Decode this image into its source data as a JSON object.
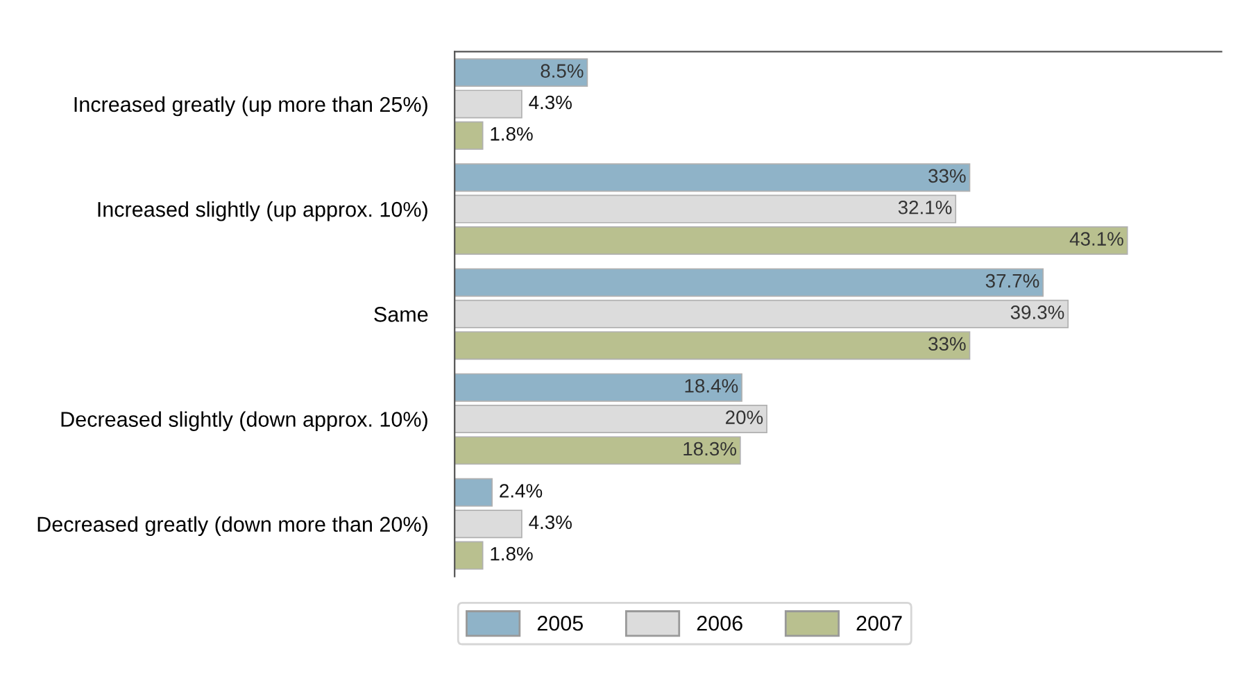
{
  "chart_data": {
    "type": "bar",
    "orientation": "horizontal",
    "categories": [
      "Increased greatly (up more than 25%)",
      "Increased slightly (up approx. 10%)",
      "Same",
      "Decreased slightly (down approx. 10%)",
      "Decreased greatly (down more than 20%)"
    ],
    "series": [
      {
        "name": "2005",
        "color": "#8fb3c8",
        "values": [
          8.5,
          33,
          37.7,
          18.4,
          2.4
        ],
        "value_labels": [
          "8.5%",
          "33%",
          "37.7%",
          "18.4%",
          "2.4%"
        ]
      },
      {
        "name": "2006",
        "color": "#dcdcdc",
        "values": [
          4.3,
          32.1,
          39.3,
          20,
          4.3
        ],
        "value_labels": [
          "4.3%",
          "32.1%",
          "39.3%",
          "20%",
          "4.3%"
        ]
      },
      {
        "name": "2007",
        "color": "#b9c08f",
        "values": [
          1.8,
          43.1,
          33,
          18.3,
          1.8
        ],
        "value_labels": [
          "1.8%",
          "43.1%",
          "33%",
          "18.3%",
          "1.8%"
        ]
      }
    ],
    "legend": "bottom",
    "grid": false
  }
}
